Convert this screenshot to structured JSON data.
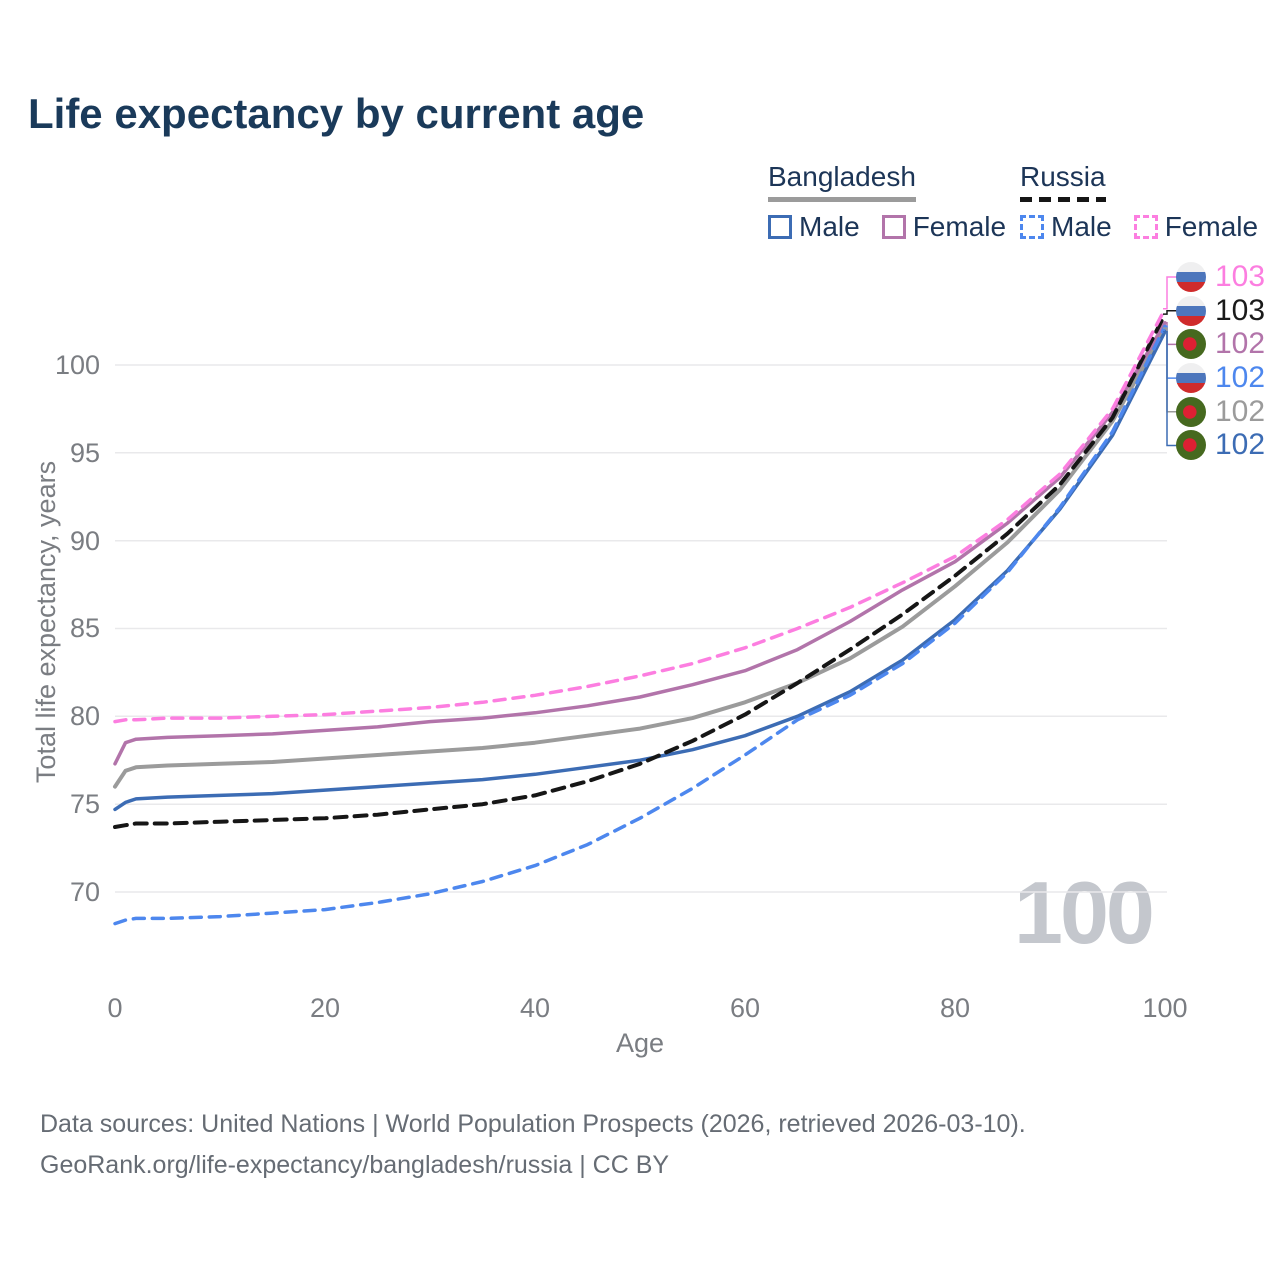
{
  "title": "Life expectancy by current age",
  "legend": {
    "groups": [
      {
        "label": "Bangladesh",
        "style": "solid",
        "items": [
          {
            "label": "Male",
            "color": "#3c6cb4"
          },
          {
            "label": "Female",
            "color": "#b274aa"
          }
        ]
      },
      {
        "label": "Russia",
        "style": "dashed",
        "items": [
          {
            "label": "Male",
            "color": "#4d87ee"
          },
          {
            "label": "Female",
            "color": "#fc7ee0"
          }
        ]
      }
    ]
  },
  "right_labels": [
    {
      "value": "103",
      "flag": "ru",
      "color": "#fc7ee0",
      "series": "russia-female"
    },
    {
      "value": "103",
      "flag": "ru",
      "color": "#1a1a1a",
      "series": "russia-total"
    },
    {
      "value": "102",
      "flag": "bd",
      "color": "#b274aa",
      "series": "bangladesh-female"
    },
    {
      "value": "102",
      "flag": "ru",
      "color": "#4d87ee",
      "series": "russia-male"
    },
    {
      "value": "102",
      "flag": "bd",
      "color": "#9b9b9b",
      "series": "bangladesh-total"
    },
    {
      "value": "102",
      "flag": "bd",
      "color": "#3c6cb4",
      "series": "bangladesh-male"
    }
  ],
  "watermark": "100",
  "footer": {
    "line1": "Data sources: United Nations | World Population Prospects (2026, retrieved 2026-03-10).",
    "line2": "GeoRank.org/life-expectancy/bangladesh/russia | CC BY"
  },
  "chart_data": {
    "type": "line",
    "title": "Life expectancy by current age",
    "xlabel": "Age",
    "ylabel": "Total life expectancy, years",
    "xlim": [
      0,
      100
    ],
    "ylim": [
      70,
      103.5
    ],
    "xticks": [
      0,
      20,
      40,
      60,
      80,
      100
    ],
    "yticks": [
      70,
      75,
      80,
      85,
      90,
      95,
      100
    ],
    "grid": true,
    "legend_position": "top-right",
    "x": [
      0,
      1,
      2,
      5,
      10,
      15,
      20,
      25,
      30,
      35,
      40,
      45,
      50,
      55,
      60,
      65,
      70,
      75,
      80,
      85,
      90,
      95,
      100
    ],
    "series": [
      {
        "key": "bangladesh-male",
        "name": "Bangladesh Male",
        "color": "#3c6cb4",
        "dashed": false,
        "width": 3.5,
        "end_label": "102",
        "values": [
          74.7,
          75.1,
          75.3,
          75.4,
          75.5,
          75.6,
          75.8,
          76.0,
          76.2,
          76.4,
          76.7,
          77.1,
          77.5,
          78.1,
          78.9,
          80.0,
          81.4,
          83.2,
          85.5,
          88.3,
          91.8,
          96.0,
          101.9
        ]
      },
      {
        "key": "bangladesh-total",
        "name": "Bangladesh",
        "color": "#9b9b9b",
        "dashed": false,
        "width": 4,
        "end_label": "102",
        "values": [
          76.0,
          76.9,
          77.1,
          77.2,
          77.3,
          77.4,
          77.6,
          77.8,
          78.0,
          78.2,
          78.5,
          78.9,
          79.3,
          79.9,
          80.8,
          81.9,
          83.3,
          85.1,
          87.4,
          89.9,
          92.9,
          96.8,
          102.1
        ]
      },
      {
        "key": "bangladesh-female",
        "name": "Bangladesh Female",
        "color": "#b274aa",
        "dashed": false,
        "width": 3.5,
        "end_label": "102",
        "values": [
          77.3,
          78.5,
          78.7,
          78.8,
          78.9,
          79.0,
          79.2,
          79.4,
          79.7,
          79.9,
          80.2,
          80.6,
          81.1,
          81.8,
          82.6,
          83.8,
          85.4,
          87.2,
          88.8,
          91.0,
          93.6,
          97.3,
          102.4
        ]
      },
      {
        "key": "russia-male",
        "name": "Russia Male",
        "color": "#4d87ee",
        "dashed": true,
        "width": 3.5,
        "end_label": "102",
        "values": [
          68.2,
          68.4,
          68.5,
          68.5,
          68.6,
          68.8,
          69.0,
          69.4,
          69.9,
          70.6,
          71.5,
          72.7,
          74.2,
          75.9,
          77.8,
          79.8,
          81.2,
          83.0,
          85.3,
          88.2,
          91.9,
          96.2,
          102.2
        ]
      },
      {
        "key": "russia-total",
        "name": "Russia",
        "color": "#161616",
        "dashed": true,
        "width": 4,
        "end_label": "103",
        "values": [
          73.7,
          73.8,
          73.9,
          73.9,
          74.0,
          74.1,
          74.2,
          74.4,
          74.7,
          75.0,
          75.5,
          76.3,
          77.3,
          78.6,
          80.1,
          81.9,
          83.8,
          85.8,
          88.0,
          90.4,
          93.2,
          97.0,
          102.9
        ]
      },
      {
        "key": "russia-female",
        "name": "Russia Female",
        "color": "#fc7ee0",
        "dashed": true,
        "width": 3.5,
        "end_label": "103",
        "values": [
          79.7,
          79.8,
          79.8,
          79.9,
          79.9,
          80.0,
          80.1,
          80.3,
          80.5,
          80.8,
          81.2,
          81.7,
          82.3,
          83.0,
          83.9,
          85.0,
          86.2,
          87.6,
          89.1,
          91.2,
          93.8,
          97.5,
          103.2
        ]
      }
    ]
  }
}
